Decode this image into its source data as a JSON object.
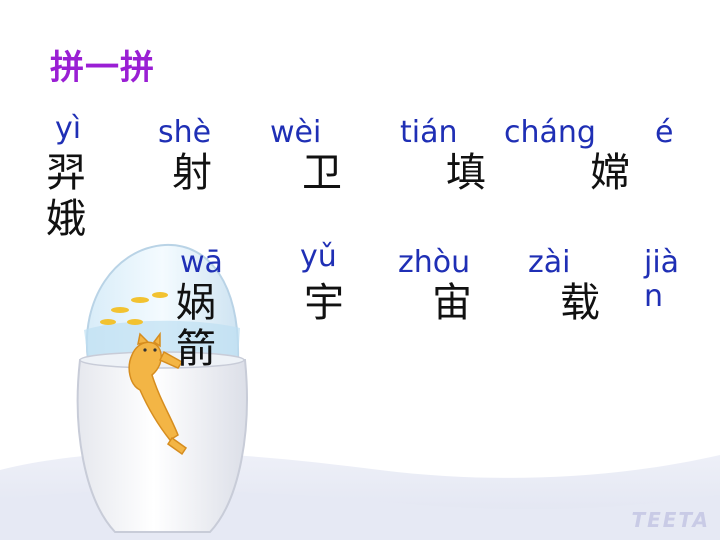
{
  "title": "拼一拼",
  "rows": {
    "row1": [
      {
        "pinyin": "yì",
        "hanzi": "羿娥"
      },
      {
        "pinyin": "shè",
        "hanzi": "射"
      },
      {
        "pinyin": "wèi",
        "hanzi": "卫"
      },
      {
        "pinyin": "tián",
        "hanzi": "填"
      },
      {
        "pinyin": "cháng",
        "hanzi": "嫦"
      },
      {
        "pinyin": "é",
        "hanzi": ""
      }
    ],
    "row2": [
      {
        "pinyin": "wā",
        "hanzi": "娲箭"
      },
      {
        "pinyin": "yǔ",
        "hanzi": "宇"
      },
      {
        "pinyin": "zhòu",
        "hanzi": "宙"
      },
      {
        "pinyin": "zài",
        "hanzi": "载"
      },
      {
        "pinyin": "jiàn",
        "hanzi": ""
      }
    ]
  },
  "logo": "TEETA"
}
